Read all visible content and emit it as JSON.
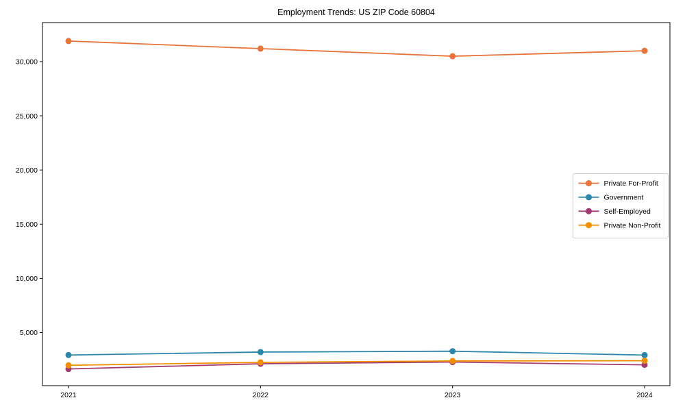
{
  "chart_data": {
    "type": "line",
    "title": "Employment Trends: US ZIP Code 60804",
    "x_categories": [
      "2021",
      "2022",
      "2023",
      "2024"
    ],
    "series": [
      {
        "name": "Private For-Profit",
        "color": "#E8743B",
        "values": [
          31900,
          31200,
          30500,
          31000
        ]
      },
      {
        "name": "Government",
        "color": "#2E86AB",
        "values": [
          2925,
          3200,
          3280,
          2920
        ]
      },
      {
        "name": "Self-Employed",
        "color": "#A23B72",
        "values": [
          1640,
          2120,
          2280,
          2020
        ]
      },
      {
        "name": "Private Non-Profit",
        "color": "#F18F01",
        "values": [
          1980,
          2250,
          2380,
          2400
        ]
      }
    ],
    "xlabel": "",
    "ylabel": "",
    "ylim": [
      100,
      33600
    ],
    "yticks": [
      5000,
      10000,
      15000,
      20000,
      25000,
      30000
    ],
    "grid": false,
    "marker": "circle",
    "legend": {
      "position": "center-right",
      "entries": [
        "Private For-Profit",
        "Government",
        "Self-Employed",
        "Private Non-Profit"
      ]
    },
    "style": {
      "axis_color": "#000000",
      "tick_label_color": "#000000",
      "legend_border_color": "#cccccc",
      "legend_background": "#ffffff",
      "background": "#ffffff"
    }
  }
}
